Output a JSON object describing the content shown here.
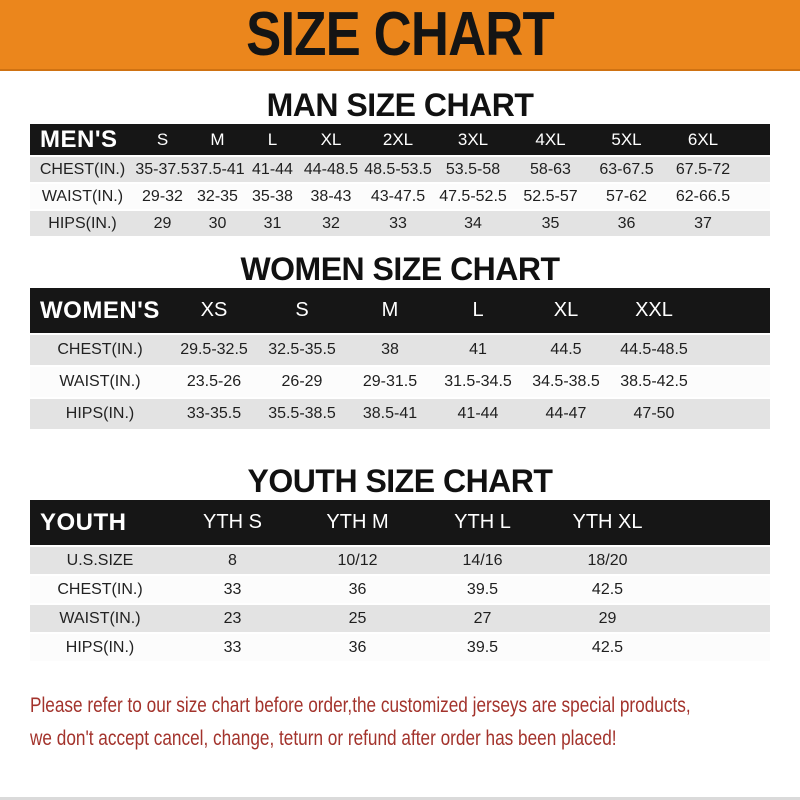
{
  "banner": {
    "title": "SIZE CHART"
  },
  "colors": {
    "banner_orange": "#EB861C",
    "header_black": "#161616",
    "row_gray": "#E3E3E3",
    "row_white": "#FCFCFC",
    "heading_black": "#111111",
    "footer_red": "#A3332C"
  },
  "chart_data": [
    {
      "type": "table",
      "title": "MAN SIZE CHART",
      "header_label": "MEN'S",
      "columns": [
        "S",
        "M",
        "L",
        "XL",
        "2XL",
        "3XL",
        "4XL",
        "5XL",
        "6XL"
      ],
      "rows": [
        {
          "label": "CHEST(IN.)",
          "values": [
            "35-37.5",
            "37.5-41",
            "41-44",
            "44-48.5",
            "48.5-53.5",
            "53.5-58",
            "58-63",
            "63-67.5",
            "67.5-72"
          ]
        },
        {
          "label": "WAIST(IN.)",
          "values": [
            "29-32",
            "32-35",
            "35-38",
            "38-43",
            "43-47.5",
            "47.5-52.5",
            "52.5-57",
            "57-62",
            "62-66.5"
          ]
        },
        {
          "label": "HIPS(IN.)",
          "values": [
            "29",
            "30",
            "31",
            "32",
            "33",
            "34",
            "35",
            "36",
            "37"
          ]
        }
      ]
    },
    {
      "type": "table",
      "title": "WOMEN SIZE CHART",
      "header_label": "WOMEN'S",
      "columns": [
        "XS",
        "S",
        "M",
        "L",
        "XL",
        "XXL"
      ],
      "rows": [
        {
          "label": "CHEST(IN.)",
          "values": [
            "29.5-32.5",
            "32.5-35.5",
            "38",
            "41",
            "44.5",
            "44.5-48.5"
          ]
        },
        {
          "label": "WAIST(IN.)",
          "values": [
            "23.5-26",
            "26-29",
            "29-31.5",
            "31.5-34.5",
            "34.5-38.5",
            "38.5-42.5"
          ]
        },
        {
          "label": "HIPS(IN.)",
          "values": [
            "33-35.5",
            "35.5-38.5",
            "38.5-41",
            "41-44",
            "44-47",
            "47-50"
          ]
        }
      ]
    },
    {
      "type": "table",
      "title": "YOUTH SIZE CHART",
      "header_label": "YOUTH",
      "columns": [
        "YTH S",
        "YTH M",
        "YTH L",
        "YTH XL"
      ],
      "rows": [
        {
          "label": "U.S.SIZE",
          "values": [
            "8",
            "10/12",
            "14/16",
            "18/20"
          ]
        },
        {
          "label": "CHEST(IN.)",
          "values": [
            "33",
            "36",
            "39.5",
            "42.5"
          ]
        },
        {
          "label": "WAIST(IN.)",
          "values": [
            "23",
            "25",
            "27",
            "29"
          ]
        },
        {
          "label": "HIPS(IN.)",
          "values": [
            "33",
            "36",
            "39.5",
            "42.5"
          ]
        }
      ]
    }
  ],
  "footer": {
    "line1": "Please refer to our size chart before order,the customized jerseys are special products,",
    "line2": "we don't accept cancel, change, teturn or refund after order has been placed!"
  }
}
